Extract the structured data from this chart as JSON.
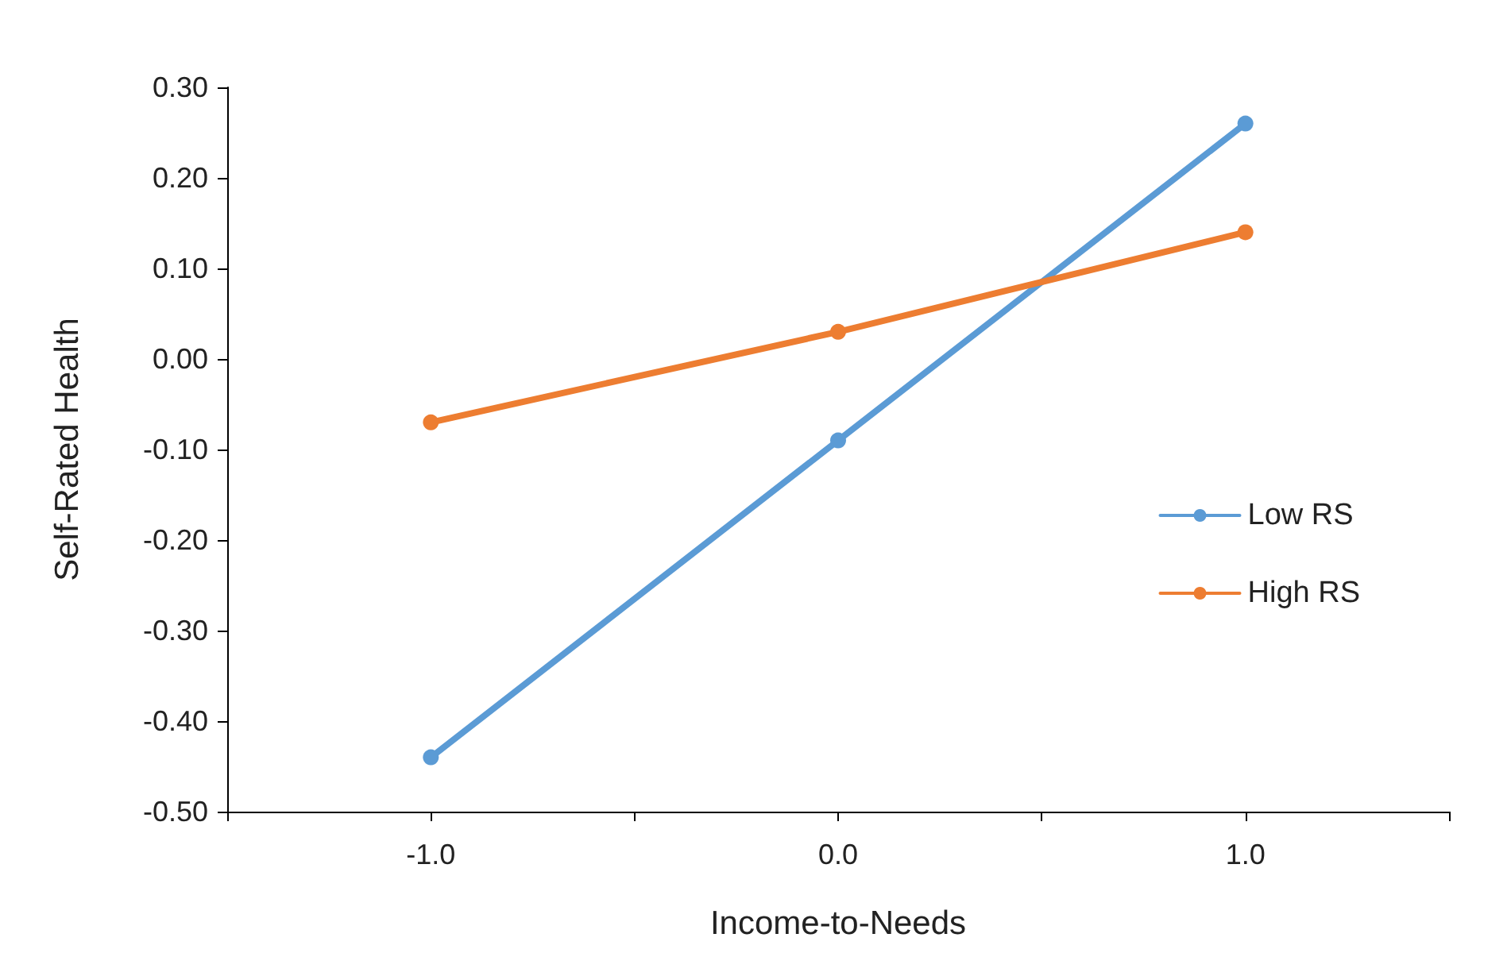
{
  "chart_data": {
    "type": "line",
    "xlabel": "Income-to-Needs",
    "ylabel": "Self-Rated Health",
    "x": [
      -1,
      0,
      1
    ],
    "series": [
      {
        "name": "Low RS",
        "color": "#5b9bd5",
        "values": [
          -0.44,
          -0.09,
          0.26
        ]
      },
      {
        "name": "High RS",
        "color": "#ed7d31",
        "values": [
          -0.07,
          0.03,
          0.14
        ]
      }
    ],
    "xlim": [
      -1.5,
      1.5
    ],
    "xticks": [
      {
        "value": -1.5,
        "label": null
      },
      {
        "value": -1,
        "label": "-1.0"
      },
      {
        "value": -0.5,
        "label": null
      },
      {
        "value": 0,
        "label": "0.0"
      },
      {
        "value": 0.5,
        "label": null
      },
      {
        "value": 1,
        "label": "1.0"
      },
      {
        "value": 1.5,
        "label": null
      }
    ],
    "ylim": [
      -0.5,
      0.3
    ],
    "yticks": [
      {
        "value": -0.5,
        "label": "-0.50"
      },
      {
        "value": -0.4,
        "label": "-0.40"
      },
      {
        "value": -0.3,
        "label": "-0.30"
      },
      {
        "value": -0.2,
        "label": "-0.20"
      },
      {
        "value": -0.1,
        "label": "-0.10"
      },
      {
        "value": 0,
        "label": "0.00"
      },
      {
        "value": 0.1,
        "label": "0.10"
      },
      {
        "value": 0.2,
        "label": "0.20"
      },
      {
        "value": 0.3,
        "label": "0.30"
      }
    ],
    "grid": false,
    "legend": "right",
    "marker": "circle",
    "line_style": "solid"
  }
}
